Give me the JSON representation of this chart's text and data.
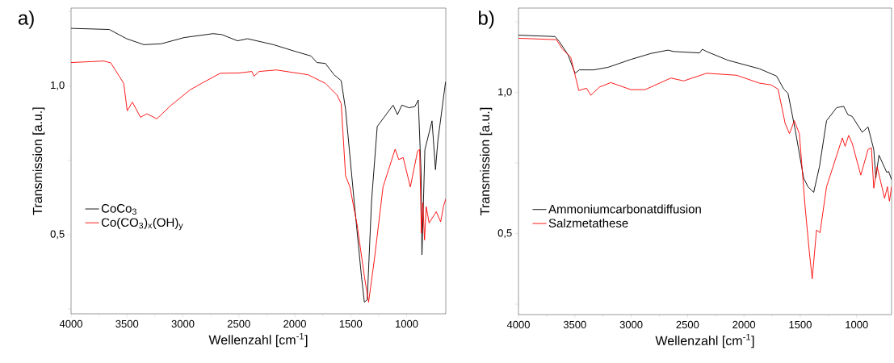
{
  "chart_data": [
    {
      "type": "line",
      "title": "a)",
      "xlabel": "Wellenzahl [cm$^{-1}$]",
      "ylabel": "Transmission [a.u.]",
      "xlim": [
        4000,
        650
      ],
      "ylim": [
        0.234,
        1.261
      ],
      "xticks": [
        4000,
        3500,
        3000,
        2500,
        2000,
        1500,
        1000
      ],
      "yticks": [
        {
          "value": 0.25,
          "label": null
        },
        {
          "value": 0.5,
          "label": "0,5"
        },
        {
          "value": 0.75,
          "label": null
        },
        {
          "value": 1.0,
          "label": "1,0"
        },
        {
          "value": 1.25,
          "label": null
        }
      ],
      "legend": "left",
      "line_style": "solid",
      "series": [
        {
          "name": "CoCo$_{3}$",
          "color": "#000000",
          "x": [
            4000,
            3658,
            3503,
            3349,
            3194,
            2988,
            2730,
            2653,
            2512,
            2422,
            2190,
            1984,
            1855,
            1803,
            1726,
            1649,
            1585,
            1546,
            1469,
            1404,
            1378,
            1352,
            1314,
            1263,
            1121,
            1082,
            1043,
            979,
            927,
            896,
            871,
            863,
            837,
            773,
            742,
            721,
            652
          ],
          "values": [
            1.193,
            1.189,
            1.158,
            1.138,
            1.141,
            1.162,
            1.175,
            1.172,
            1.151,
            1.158,
            1.138,
            1.114,
            1.1,
            1.078,
            1.075,
            1.037,
            1.017,
            0.921,
            0.611,
            0.36,
            0.273,
            0.282,
            0.611,
            0.863,
            0.935,
            0.903,
            0.935,
            0.926,
            0.93,
            0.952,
            0.708,
            0.432,
            0.785,
            0.882,
            0.718,
            0.815,
            1.013
          ]
        },
        {
          "name": "Co(CO$_{3}$)$_{x}$(OH)$_{y}$",
          "color": "#ff0000",
          "x": [
            4000,
            3709,
            3645,
            3529,
            3498,
            3452,
            3379,
            3323,
            3233,
            3104,
            2937,
            2834,
            2666,
            2499,
            2383,
            2365,
            2319,
            2164,
            1881,
            1726,
            1623,
            1585,
            1546,
            1507,
            1443,
            1378,
            1340,
            1288,
            1211,
            1103,
            1070,
            1031,
            967,
            902,
            884,
            868,
            855,
            840,
            825,
            799,
            735,
            696,
            670,
            650
          ],
          "values": [
            1.078,
            1.083,
            1.077,
            1.008,
            0.916,
            0.945,
            0.894,
            0.906,
            0.889,
            0.935,
            0.986,
            1.008,
            1.042,
            1.043,
            1.048,
            1.032,
            1.048,
            1.053,
            1.037,
            1.008,
            0.969,
            0.94,
            0.698,
            0.66,
            0.534,
            0.36,
            0.273,
            0.418,
            0.66,
            0.787,
            0.752,
            0.759,
            0.66,
            0.781,
            0.786,
            0.505,
            0.607,
            0.482,
            0.594,
            0.539,
            0.577,
            0.543,
            0.596,
            0.62
          ]
        }
      ]
    },
    {
      "type": "line",
      "title": "b)",
      "xlabel": "Wellenzahl [cm$^{-1}$]",
      "ylabel": "Transmission [a.u.]",
      "xlim": [
        4000,
        690
      ],
      "ylim": [
        0.213,
        1.299
      ],
      "xticks": [
        4000,
        3500,
        3000,
        2500,
        2000,
        1500,
        1000
      ],
      "yticks": [
        {
          "value": 0.25,
          "label": null
        },
        {
          "value": 0.5,
          "label": "0,5"
        },
        {
          "value": 0.75,
          "label": null
        },
        {
          "value": 1.0,
          "label": "1,0"
        },
        {
          "value": 1.25,
          "label": null
        }
      ],
      "legend": "left",
      "line_style": "solid",
      "series": [
        {
          "name": "Ammoniumcarbonatdiffusion",
          "color": "#000000",
          "x": [
            4000,
            3675,
            3637,
            3561,
            3498,
            3460,
            3333,
            3206,
            3003,
            2826,
            2674,
            2623,
            2394,
            2369,
            2331,
            2141,
            1862,
            1710,
            1647,
            1609,
            1546,
            1470,
            1432,
            1381,
            1330,
            1267,
            1178,
            1115,
            1077,
            1039,
            950,
            899,
            848,
            830,
            802,
            733,
            716,
            690
          ],
          "values": [
            1.203,
            1.198,
            1.18,
            1.134,
            1.068,
            1.08,
            1.08,
            1.089,
            1.117,
            1.138,
            1.15,
            1.145,
            1.14,
            1.153,
            1.145,
            1.114,
            1.084,
            1.058,
            1.012,
            0.997,
            0.87,
            0.697,
            0.666,
            0.646,
            0.737,
            0.9,
            0.946,
            0.951,
            0.921,
            0.915,
            0.859,
            0.878,
            0.798,
            0.697,
            0.778,
            0.717,
            0.72,
            0.691
          ]
        },
        {
          "name": "Salzmetathese",
          "color": "#ff0000",
          "x": [
            4000,
            3663,
            3612,
            3536,
            3465,
            3396,
            3358,
            3282,
            3181,
            3003,
            2877,
            2648,
            2534,
            2331,
            2065,
            1862,
            1761,
            1697,
            1634,
            1596,
            1553,
            1508,
            1457,
            1419,
            1394,
            1356,
            1325,
            1267,
            1127,
            1102,
            1071,
            1039,
            963,
            899,
            869,
            848,
            818,
            752,
            727,
            709,
            690
          ],
          "values": [
            1.192,
            1.187,
            1.155,
            1.124,
            1.007,
            1.015,
            0.99,
            1.019,
            1.035,
            1.01,
            1.01,
            1.051,
            1.041,
            1.068,
            1.061,
            1.033,
            1.027,
            1.012,
            0.89,
            0.854,
            0.9,
            0.854,
            0.595,
            0.432,
            0.34,
            0.513,
            0.503,
            0.666,
            0.839,
            0.809,
            0.848,
            0.819,
            0.707,
            0.798,
            0.804,
            0.661,
            0.737,
            0.625,
            0.666,
            0.615,
            0.666
          ]
        }
      ]
    }
  ]
}
